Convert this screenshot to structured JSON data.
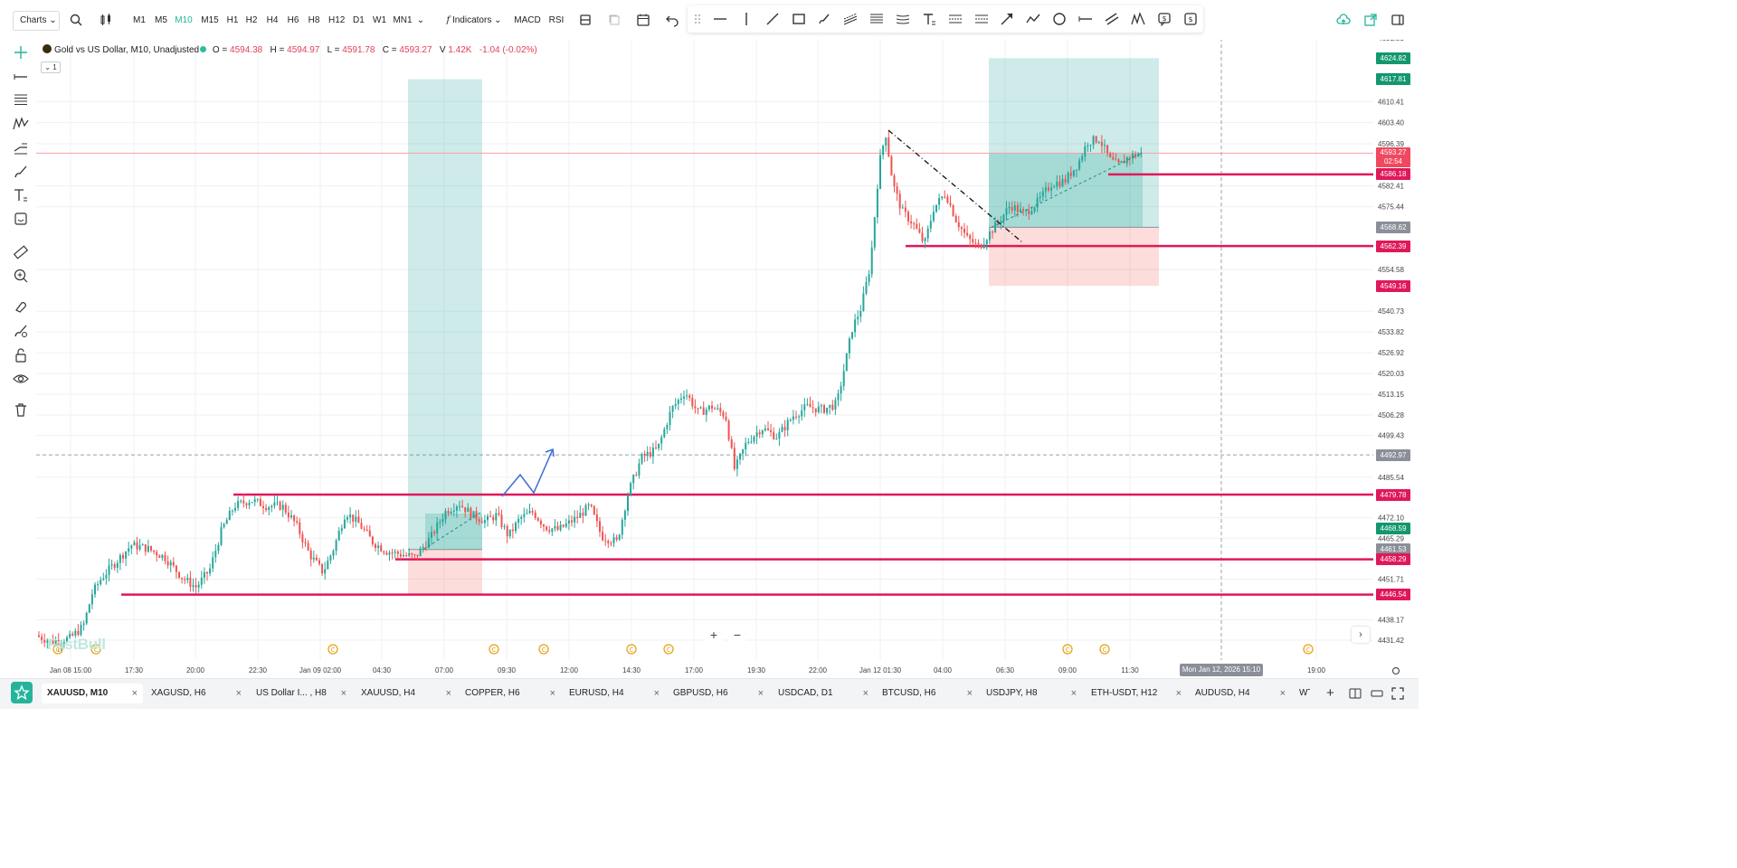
{
  "toolbar": {
    "charts_label": "Charts",
    "timeframes": [
      "M1",
      "M5",
      "M10",
      "M15",
      "H1",
      "H2",
      "H4",
      "H6",
      "H8",
      "H12",
      "D1",
      "W1",
      "MN1"
    ],
    "active_timeframe": "M10",
    "indicators_label": "Indicators",
    "macd_label": "MACD",
    "rsi_label": "RSI"
  },
  "legend": {
    "symbol_title": "Gold vs US Dollar, M10, Unadjusted",
    "o_label": "O = ",
    "o_value": "4594.38",
    "h_label": "H = ",
    "h_value": "4594.97",
    "l_label": "L = ",
    "l_value": "4591.78",
    "c_label": "C = ",
    "c_value": "4593.27",
    "v_label": "V ",
    "v_value": "1.42K",
    "change": "-1.04 (-0.02%)",
    "collapse_label": "1"
  },
  "watermark": "FastBull",
  "price_axis": {
    "ticks": [
      "4631.53",
      "4610.41",
      "4603.40",
      "4596.39",
      "4582.41",
      "4575.44",
      "4554.58",
      "4540.73",
      "4533.82",
      "4526.92",
      "4520.03",
      "4513.15",
      "4506.28",
      "4499.43",
      "4485.54",
      "4472.10",
      "4465.29",
      "4451.71",
      "4438.17",
      "4431.42"
    ]
  },
  "price_labels": [
    {
      "text": "4624.82",
      "color": "#13976e"
    },
    {
      "text": "4617.81",
      "color": "#13976e"
    },
    {
      "text": "4593.27",
      "sub": "02:54",
      "color": "#f0485f"
    },
    {
      "text": "4586.18",
      "color": "#e0185a"
    },
    {
      "text": "4568.62",
      "color": "#8a8f99"
    },
    {
      "text": "4562.39",
      "color": "#e0185a"
    },
    {
      "text": "4549.16",
      "color": "#e0185a"
    },
    {
      "text": "4492.97",
      "color": "#8a8f99"
    },
    {
      "text": "4479.78",
      "color": "#e0185a"
    },
    {
      "text": "4468.59",
      "color": "#13976e"
    },
    {
      "text": "4461.53",
      "color": "#8a8f99"
    },
    {
      "text": "4458.29",
      "color": "#e0185a"
    },
    {
      "text": "4446.54",
      "color": "#e0185a"
    }
  ],
  "time_axis": {
    "ticks": [
      "Jan 08 15:00",
      "17:30",
      "20:00",
      "22:30",
      "Jan 09 02:00",
      "04:30",
      "07:00",
      "09:30",
      "12:00",
      "14:30",
      "17:00",
      "19:30",
      "22:00",
      "Jan 12 01:30",
      "04:00",
      "06:30",
      "09:00",
      "11:30",
      "19:00"
    ],
    "cursor_label": "Mon Jan 12, 2026 15:10"
  },
  "tabs": [
    {
      "label": "XAUUSD, M10",
      "active": true
    },
    {
      "label": "XAGUSD, H6"
    },
    {
      "label": "US Dollar I... , H8"
    },
    {
      "label": "XAUUSD, H4"
    },
    {
      "label": "COPPER, H6"
    },
    {
      "label": "EURUSD, H4"
    },
    {
      "label": "GBPUSD, H6"
    },
    {
      "label": "USDCAD, D1"
    },
    {
      "label": "BTCUSD, H6"
    },
    {
      "label": "USDJPY, H8"
    },
    {
      "label": "ETH-USDT, H12"
    },
    {
      "label": "AUDUSD, H4"
    },
    {
      "label": "WTI, D"
    }
  ],
  "close_glyph": "×",
  "colors": {
    "up": "#26a69a",
    "down": "#ef5350",
    "hline": "#e0185a",
    "accent": "#25b49a"
  }
}
